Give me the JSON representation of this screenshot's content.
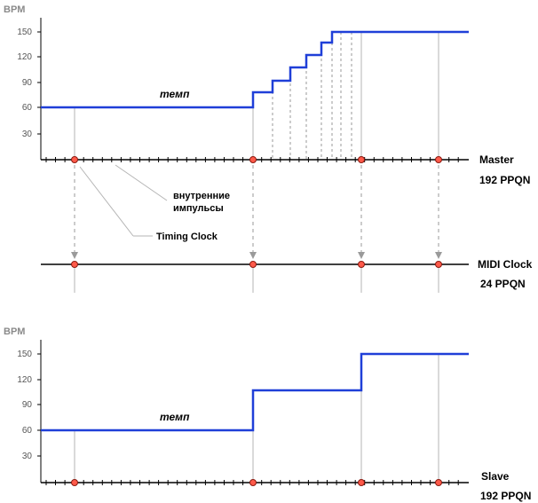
{
  "colors": {
    "tempo_line": "#1f3fd8",
    "axis": "#000000",
    "dot_fill": "#ff5a4a",
    "dot_stroke": "#8b1a10",
    "guide": "#b5b5b5",
    "dashed": "#9a9a9a",
    "tick_label": "#555555",
    "bpm_label": "#8a8a8a"
  },
  "master": {
    "axis_title": "BPM",
    "y_ticks": [
      "150",
      "120",
      "90",
      "60",
      "30"
    ],
    "tempo_label": "темп",
    "label_line1": "Master",
    "label_line2": "192  PPQN",
    "tempo_steps_bpm": [
      60,
      76,
      92,
      106,
      121,
      136,
      150
    ]
  },
  "midi_clock": {
    "label_line1": "MIDI Clock",
    "label_line2": "24  PPQN"
  },
  "annotations": {
    "internal_line1": "внутренние",
    "internal_line2": "импульсы",
    "timing_clock": "Timing Clock"
  },
  "slave": {
    "axis_title": "BPM",
    "y_ticks": [
      "150",
      "120",
      "90",
      "60",
      "30"
    ],
    "tempo_label": "темп",
    "label_line1": "Slave",
    "label_line2": "192  PPQN",
    "tempo_steps_bpm": [
      60,
      106,
      150
    ]
  }
}
